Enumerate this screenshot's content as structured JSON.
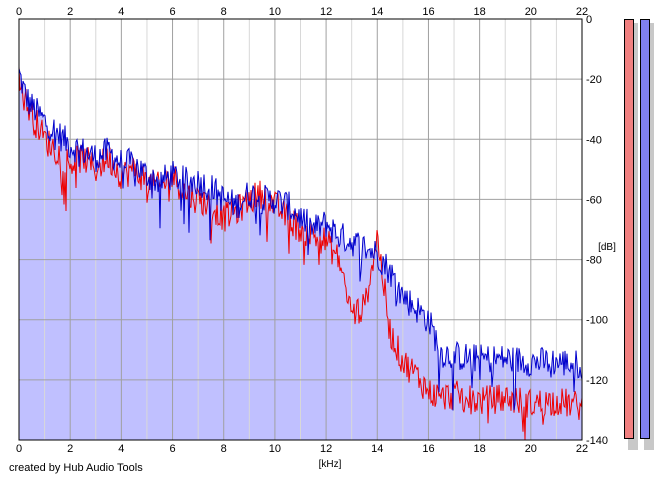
{
  "credit": "created by Hub Audio Tools",
  "meters": {
    "left_color": "#f08080",
    "right_color": "#8080f0"
  },
  "chart_data": {
    "type": "line",
    "xlabel": "[kHz]",
    "ylabel": "[dB]",
    "xlim": [
      0,
      22
    ],
    "ylim": [
      -140,
      0
    ],
    "x_ticks": [
      0,
      2,
      4,
      6,
      8,
      10,
      12,
      14,
      16,
      18,
      20,
      22
    ],
    "y_ticks": [
      0,
      -20,
      -40,
      -60,
      -80,
      -100,
      -120,
      -140
    ],
    "y_tick_labels": [
      "0",
      "-20",
      "-40",
      "-60",
      "-80",
      "-100",
      "-120",
      "-140"
    ],
    "grid": true,
    "fill_color": "#c0c0ff",
    "series": [
      {
        "color": "#0000cc",
        "x": [
          0,
          0.2,
          0.4,
          0.6,
          0.8,
          1,
          1.5,
          2,
          2.5,
          3,
          3.5,
          4,
          4.5,
          5,
          5.5,
          6,
          6.5,
          7,
          7.5,
          8,
          8.5,
          9,
          9.5,
          10,
          10.5,
          11,
          11.5,
          12,
          12.5,
          13,
          13.5,
          14,
          14.5,
          15,
          15.5,
          16,
          16.5,
          17,
          18,
          19,
          20,
          21,
          22
        ],
        "y": [
          -18,
          -24,
          -28,
          -30,
          -32,
          -34,
          -38,
          -42,
          -44,
          -46,
          -44,
          -48,
          -48,
          -52,
          -54,
          -52,
          -54,
          -54,
          -56,
          -60,
          -62,
          -58,
          -60,
          -60,
          -62,
          -66,
          -70,
          -68,
          -72,
          -74,
          -76,
          -78,
          -84,
          -92,
          -96,
          -100,
          -111,
          -112,
          -113,
          -113,
          -114,
          -114,
          -115
        ]
      },
      {
        "color": "#ee0000",
        "x": [
          0,
          0.2,
          0.4,
          0.6,
          0.8,
          1,
          1.5,
          2,
          2.5,
          3,
          3.5,
          4,
          4.5,
          5,
          5.5,
          6,
          6.5,
          7,
          7.5,
          8,
          8.5,
          9,
          9.5,
          10,
          10.5,
          11,
          11.5,
          12,
          12.5,
          13,
          13.5,
          14,
          14.5,
          15,
          15.5,
          16,
          16.5,
          17,
          18,
          19,
          20,
          21,
          22
        ],
        "y": [
          -20,
          -26,
          -30,
          -34,
          -36,
          -40,
          -44,
          -48,
          -46,
          -50,
          -46,
          -52,
          -50,
          -54,
          -56,
          -52,
          -58,
          -60,
          -62,
          -66,
          -64,
          -60,
          -58,
          -62,
          -66,
          -70,
          -72,
          -74,
          -80,
          -98,
          -96,
          -72,
          -104,
          -114,
          -118,
          -124,
          -126,
          -125,
          -127,
          -126,
          -128,
          -127,
          -129
        ]
      }
    ]
  }
}
